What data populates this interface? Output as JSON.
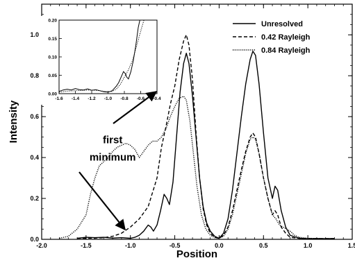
{
  "chart_data": {
    "type": "line",
    "title": "",
    "xlabel": "Position",
    "ylabel": "Intensity",
    "xlim": [
      -2.0,
      1.5
    ],
    "ylim": [
      0.0,
      1.15
    ],
    "xticks": [
      "-2.0",
      "-1.5",
      "-1.0",
      "-0.5",
      "0.0",
      "0.5",
      "1.0",
      "1.5"
    ],
    "yticks": [
      "0.0",
      "0.2",
      "0.4",
      "0.6",
      "0.8",
      "1.0"
    ],
    "legend_position": "top-right",
    "series": [
      {
        "name": "Unresolved",
        "style": "solid",
        "points": [
          [
            -1.6,
            0.005
          ],
          [
            -1.5,
            0.01
          ],
          [
            -1.4,
            0.008
          ],
          [
            -1.3,
            0.01
          ],
          [
            -1.2,
            0.006
          ],
          [
            -1.1,
            0.008
          ],
          [
            -1.0,
            0.005
          ],
          [
            -0.95,
            0.01
          ],
          [
            -0.9,
            0.02
          ],
          [
            -0.85,
            0.04
          ],
          [
            -0.8,
            0.07
          ],
          [
            -0.77,
            0.06
          ],
          [
            -0.74,
            0.04
          ],
          [
            -0.7,
            0.07
          ],
          [
            -0.66,
            0.14
          ],
          [
            -0.62,
            0.22
          ],
          [
            -0.59,
            0.2
          ],
          [
            -0.56,
            0.17
          ],
          [
            -0.52,
            0.28
          ],
          [
            -0.48,
            0.5
          ],
          [
            -0.44,
            0.72
          ],
          [
            -0.4,
            0.86
          ],
          [
            -0.37,
            0.91
          ],
          [
            -0.34,
            0.86
          ],
          [
            -0.3,
            0.7
          ],
          [
            -0.26,
            0.5
          ],
          [
            -0.22,
            0.3
          ],
          [
            -0.18,
            0.16
          ],
          [
            -0.14,
            0.08
          ],
          [
            -0.1,
            0.04
          ],
          [
            -0.05,
            0.015
          ],
          [
            0.0,
            0.005
          ],
          [
            0.05,
            0.03
          ],
          [
            0.1,
            0.1
          ],
          [
            0.15,
            0.24
          ],
          [
            0.2,
            0.42
          ],
          [
            0.25,
            0.6
          ],
          [
            0.3,
            0.76
          ],
          [
            0.35,
            0.88
          ],
          [
            0.38,
            0.92
          ],
          [
            0.41,
            0.9
          ],
          [
            0.45,
            0.76
          ],
          [
            0.5,
            0.52
          ],
          [
            0.55,
            0.3
          ],
          [
            0.6,
            0.2
          ],
          [
            0.63,
            0.26
          ],
          [
            0.66,
            0.24
          ],
          [
            0.7,
            0.14
          ],
          [
            0.75,
            0.06
          ],
          [
            0.8,
            0.02
          ],
          [
            0.9,
            0.005
          ],
          [
            1.0,
            0.003
          ],
          [
            1.1,
            0.004
          ],
          [
            1.2,
            0.003
          ],
          [
            1.3,
            0.004
          ]
        ]
      },
      {
        "name": "0.42 Rayleigh",
        "style": "dashed",
        "points": [
          [
            -1.6,
            0.005
          ],
          [
            -1.5,
            0.005
          ],
          [
            -1.4,
            0.006
          ],
          [
            -1.3,
            0.008
          ],
          [
            -1.2,
            0.015
          ],
          [
            -1.1,
            0.03
          ],
          [
            -1.0,
            0.06
          ],
          [
            -0.9,
            0.1
          ],
          [
            -0.8,
            0.16
          ],
          [
            -0.7,
            0.3
          ],
          [
            -0.65,
            0.45
          ],
          [
            -0.6,
            0.55
          ],
          [
            -0.55,
            0.66
          ],
          [
            -0.5,
            0.75
          ],
          [
            -0.45,
            0.88
          ],
          [
            -0.4,
            0.97
          ],
          [
            -0.37,
            1.0
          ],
          [
            -0.34,
            0.95
          ],
          [
            -0.3,
            0.78
          ],
          [
            -0.26,
            0.52
          ],
          [
            -0.22,
            0.3
          ],
          [
            -0.18,
            0.15
          ],
          [
            -0.14,
            0.07
          ],
          [
            -0.1,
            0.03
          ],
          [
            -0.05,
            0.01
          ],
          [
            0.0,
            0.005
          ],
          [
            0.05,
            0.02
          ],
          [
            0.1,
            0.06
          ],
          [
            0.15,
            0.14
          ],
          [
            0.2,
            0.24
          ],
          [
            0.25,
            0.34
          ],
          [
            0.3,
            0.43
          ],
          [
            0.35,
            0.5
          ],
          [
            0.38,
            0.52
          ],
          [
            0.41,
            0.5
          ],
          [
            0.45,
            0.42
          ],
          [
            0.5,
            0.3
          ],
          [
            0.55,
            0.2
          ],
          [
            0.6,
            0.12
          ],
          [
            0.63,
            0.14
          ],
          [
            0.66,
            0.12
          ],
          [
            0.7,
            0.06
          ],
          [
            0.75,
            0.03
          ],
          [
            0.8,
            0.01
          ],
          [
            0.9,
            0.005
          ],
          [
            1.0,
            0.004
          ],
          [
            1.1,
            0.003
          ],
          [
            1.2,
            0.004
          ],
          [
            1.3,
            0.003
          ]
        ]
      },
      {
        "name": "0.84 Rayleigh",
        "style": "dotted",
        "points": [
          [
            -1.8,
            0.005
          ],
          [
            -1.7,
            0.015
          ],
          [
            -1.6,
            0.05
          ],
          [
            -1.5,
            0.12
          ],
          [
            -1.45,
            0.22
          ],
          [
            -1.4,
            0.3
          ],
          [
            -1.35,
            0.36
          ],
          [
            -1.3,
            0.38
          ],
          [
            -1.25,
            0.4
          ],
          [
            -1.2,
            0.43
          ],
          [
            -1.15,
            0.45
          ],
          [
            -1.1,
            0.46
          ],
          [
            -1.05,
            0.47
          ],
          [
            -1.0,
            0.46
          ],
          [
            -0.95,
            0.44
          ],
          [
            -0.9,
            0.4
          ],
          [
            -0.85,
            0.43
          ],
          [
            -0.8,
            0.46
          ],
          [
            -0.75,
            0.48
          ],
          [
            -0.7,
            0.48
          ],
          [
            -0.65,
            0.5
          ],
          [
            -0.6,
            0.54
          ],
          [
            -0.55,
            0.6
          ],
          [
            -0.5,
            0.65
          ],
          [
            -0.45,
            0.69
          ],
          [
            -0.4,
            0.7
          ],
          [
            -0.37,
            0.68
          ],
          [
            -0.33,
            0.58
          ],
          [
            -0.29,
            0.42
          ],
          [
            -0.25,
            0.26
          ],
          [
            -0.2,
            0.12
          ],
          [
            -0.15,
            0.05
          ],
          [
            -0.1,
            0.02
          ],
          [
            -0.05,
            0.008
          ],
          [
            0.0,
            0.005
          ],
          [
            0.05,
            0.015
          ],
          [
            0.1,
            0.05
          ],
          [
            0.15,
            0.12
          ],
          [
            0.2,
            0.22
          ],
          [
            0.25,
            0.32
          ],
          [
            0.3,
            0.42
          ],
          [
            0.35,
            0.49
          ],
          [
            0.38,
            0.5
          ],
          [
            0.41,
            0.49
          ],
          [
            0.45,
            0.42
          ],
          [
            0.5,
            0.3
          ],
          [
            0.55,
            0.2
          ],
          [
            0.6,
            0.12
          ],
          [
            0.64,
            0.1
          ],
          [
            0.68,
            0.07
          ],
          [
            0.72,
            0.06
          ],
          [
            0.76,
            0.05
          ],
          [
            0.8,
            0.04
          ],
          [
            0.85,
            0.02
          ],
          [
            0.9,
            0.01
          ],
          [
            1.0,
            0.005
          ],
          [
            1.1,
            0.004
          ],
          [
            1.2,
            0.003
          ],
          [
            1.3,
            0.004
          ]
        ]
      }
    ],
    "annotations": [
      {
        "text": "first",
        "x": -1.2,
        "y": 0.47
      },
      {
        "text": "minimum",
        "x": -1.2,
        "y": 0.385
      }
    ],
    "inset": {
      "xlim": [
        -1.6,
        -0.4
      ],
      "ylim": [
        0.0,
        0.2
      ],
      "xticks": [
        "-1.6",
        "-1.4",
        "-1.2",
        "-1.0",
        "-0.8",
        "-0.6",
        "-0.4"
      ],
      "yticks": [
        "0.00",
        "0.05",
        "0.10",
        "0.15",
        "0.20"
      ],
      "series": [
        {
          "name": "Unresolved",
          "style": "solid",
          "points": [
            [
              -1.6,
              0.006
            ],
            [
              -1.55,
              0.01
            ],
            [
              -1.5,
              0.012
            ],
            [
              -1.45,
              0.01
            ],
            [
              -1.4,
              0.014
            ],
            [
              -1.35,
              0.011
            ],
            [
              -1.3,
              0.01
            ],
            [
              -1.25,
              0.013
            ],
            [
              -1.2,
              0.009
            ],
            [
              -1.15,
              0.011
            ],
            [
              -1.1,
              0.008
            ],
            [
              -1.05,
              0.005
            ],
            [
              -1.0,
              0.004
            ],
            [
              -0.95,
              0.008
            ],
            [
              -0.9,
              0.02
            ],
            [
              -0.87,
              0.03
            ],
            [
              -0.84,
              0.045
            ],
            [
              -0.81,
              0.06
            ],
            [
              -0.79,
              0.055
            ],
            [
              -0.77,
              0.045
            ],
            [
              -0.75,
              0.04
            ],
            [
              -0.72,
              0.06
            ],
            [
              -0.69,
              0.09
            ],
            [
              -0.66,
              0.13
            ],
            [
              -0.63,
              0.18
            ],
            [
              -0.61,
              0.2
            ]
          ]
        },
        {
          "name": "0.84 Rayleigh",
          "style": "dotted",
          "points": [
            [
              -1.6,
              0.004
            ],
            [
              -1.5,
              0.007
            ],
            [
              -1.4,
              0.008
            ],
            [
              -1.3,
              0.009
            ],
            [
              -1.2,
              0.01
            ],
            [
              -1.1,
              0.008
            ],
            [
              -1.0,
              0.005
            ],
            [
              -0.95,
              0.006
            ],
            [
              -0.9,
              0.012
            ],
            [
              -0.85,
              0.025
            ],
            [
              -0.8,
              0.045
            ],
            [
              -0.75,
              0.065
            ],
            [
              -0.7,
              0.09
            ],
            [
              -0.65,
              0.13
            ],
            [
              -0.6,
              0.17
            ],
            [
              -0.56,
              0.2
            ]
          ]
        }
      ]
    }
  }
}
